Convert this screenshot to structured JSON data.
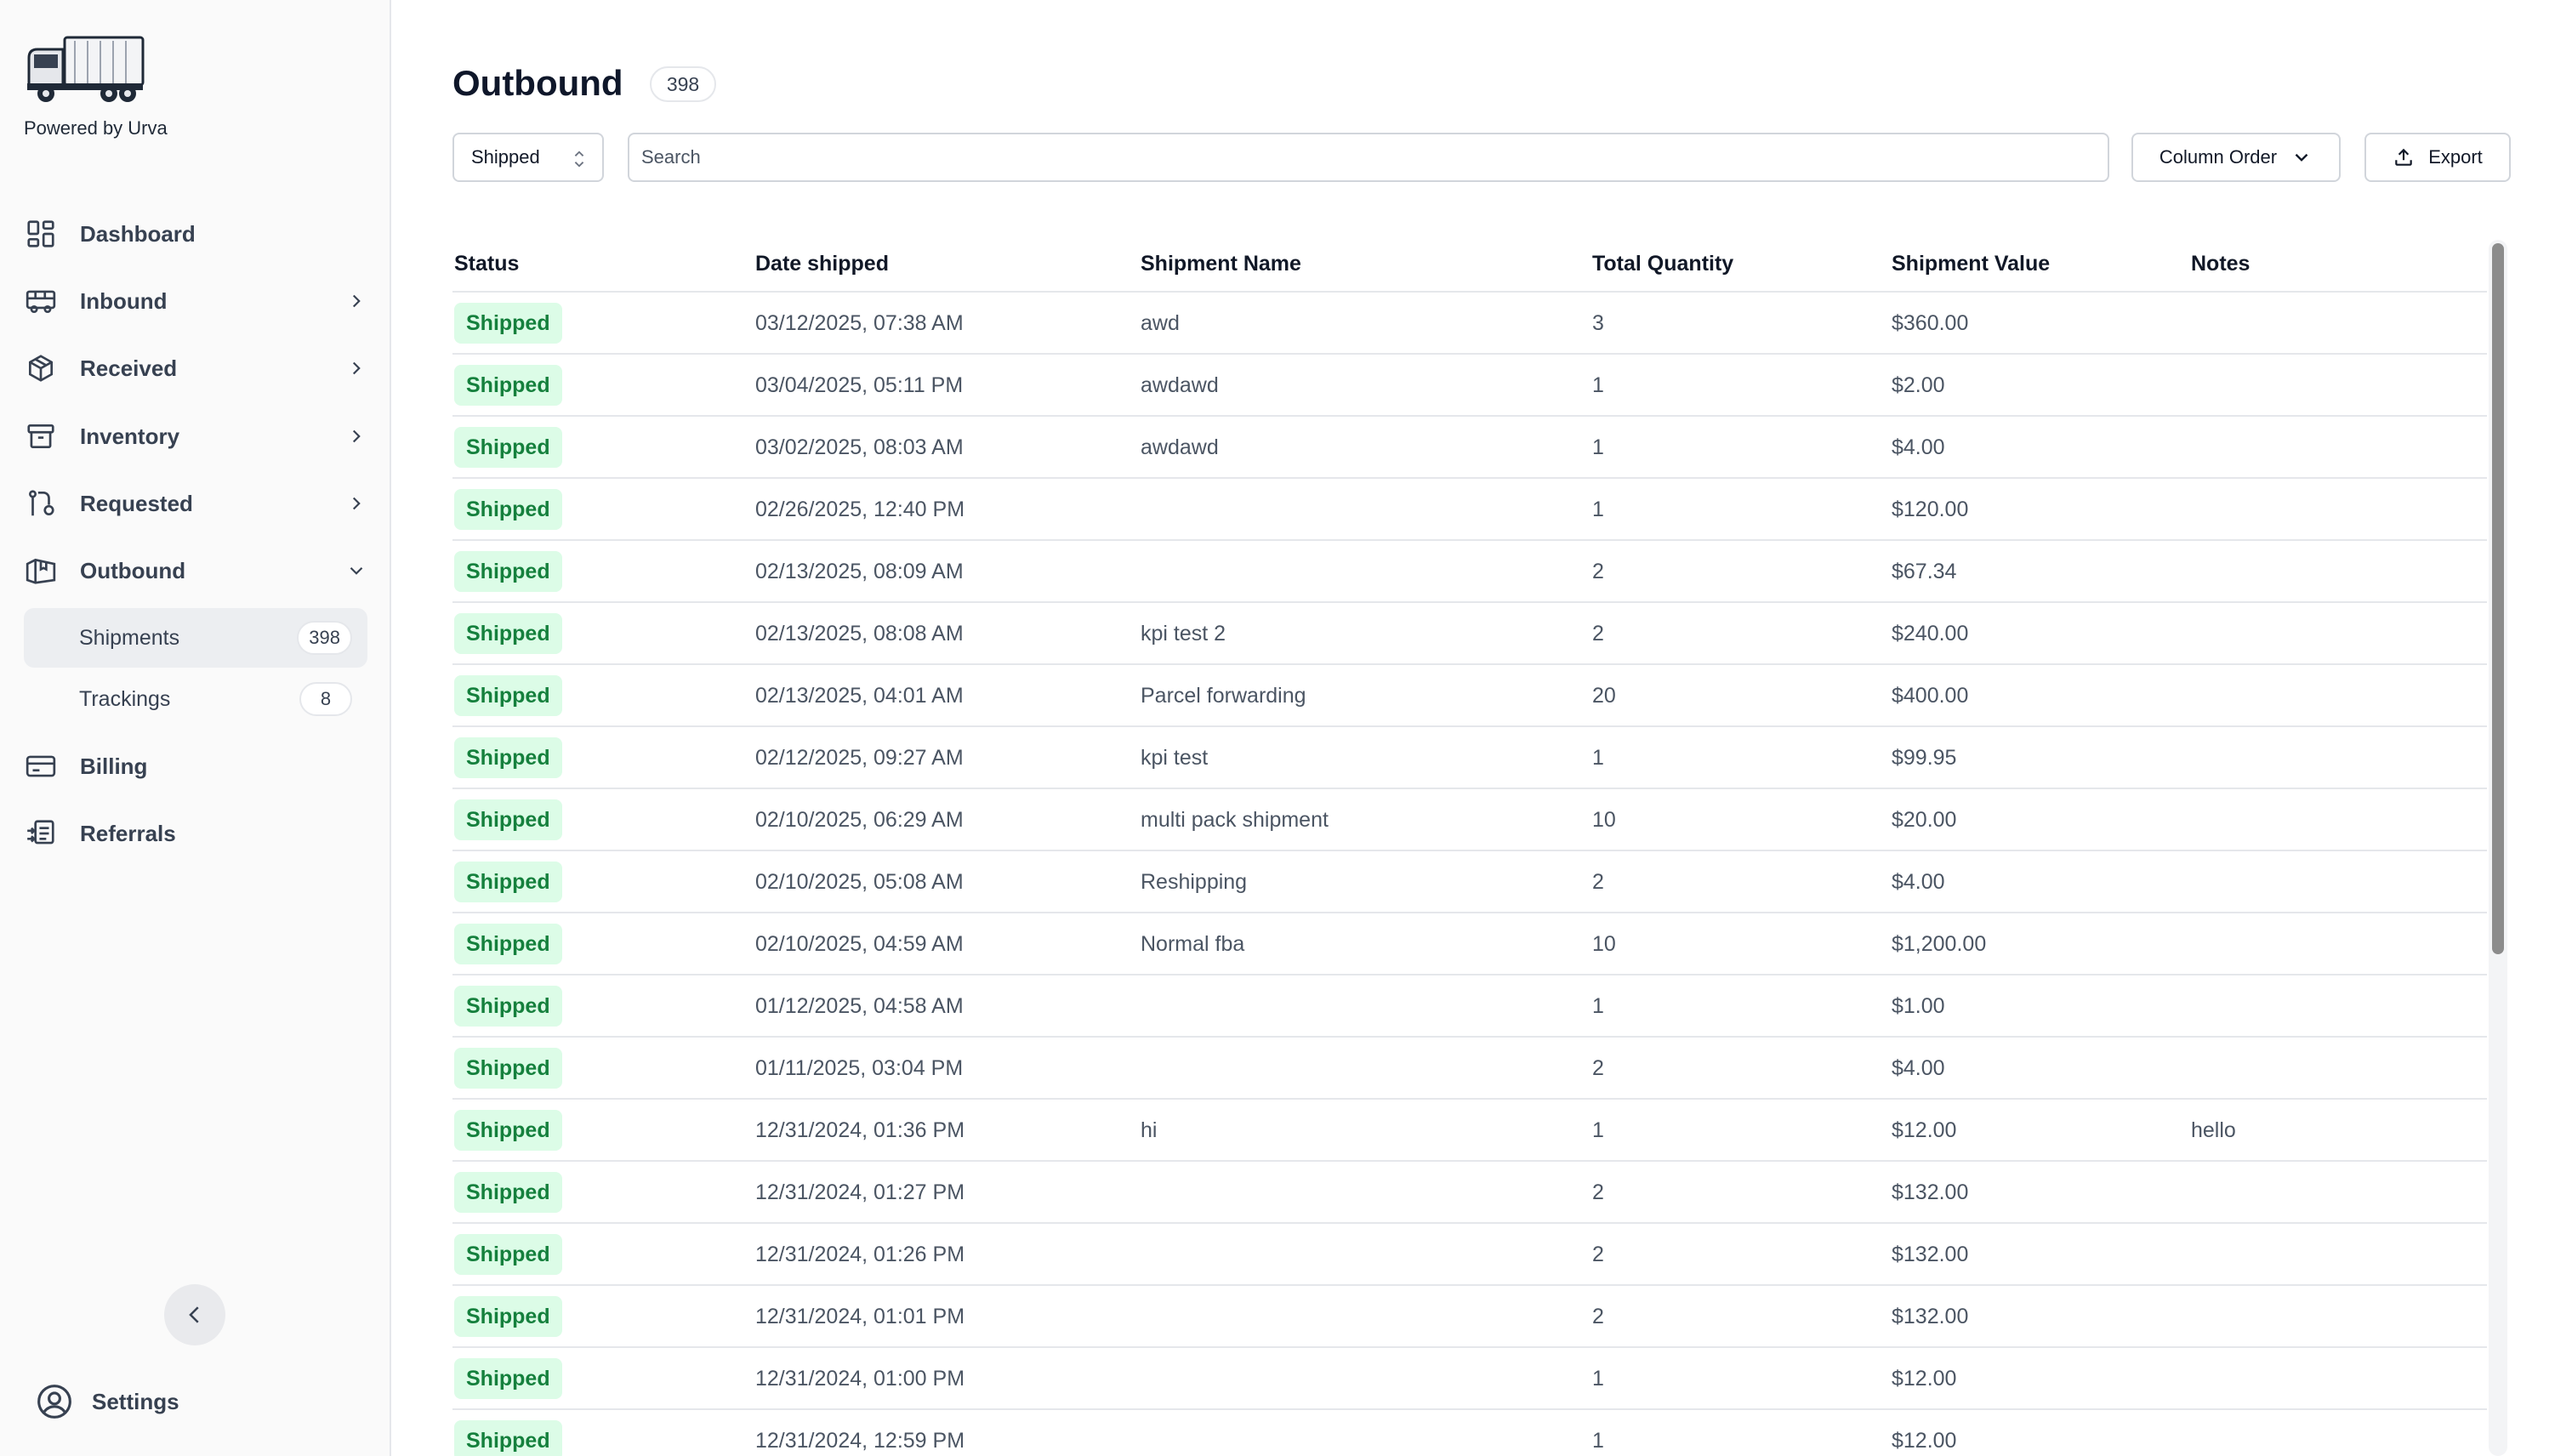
{
  "brand": {
    "powered_by": "Powered by Urva"
  },
  "sidebar": {
    "items": [
      {
        "label": "Dashboard",
        "icon": "dashboard-icon"
      },
      {
        "label": "Inbound",
        "icon": "truck-icon"
      },
      {
        "label": "Received",
        "icon": "package-icon"
      },
      {
        "label": "Inventory",
        "icon": "archive-icon"
      },
      {
        "label": "Requested",
        "icon": "route-icon"
      },
      {
        "label": "Outbound",
        "icon": "box-open-icon"
      }
    ],
    "outbound_sub": [
      {
        "label": "Shipments",
        "count": "398"
      },
      {
        "label": "Trackings",
        "count": "8"
      }
    ],
    "bottom_items": [
      {
        "label": "Billing",
        "icon": "credit-card-icon"
      },
      {
        "label": "Referrals",
        "icon": "referrals-icon"
      }
    ],
    "settings_label": "Settings"
  },
  "header": {
    "title": "Outbound",
    "count": "398"
  },
  "toolbar": {
    "status_filter": "Shipped",
    "search_placeholder": "Search",
    "column_order_label": "Column Order",
    "export_label": "Export"
  },
  "table": {
    "columns": [
      "Status",
      "Date shipped",
      "Shipment Name",
      "Total Quantity",
      "Shipment Value",
      "Notes"
    ],
    "rows": [
      {
        "status": "Shipped",
        "date": "03/12/2025, 07:38 AM",
        "name": "awd",
        "qty": "3",
        "value": "$360.00",
        "notes": ""
      },
      {
        "status": "Shipped",
        "date": "03/04/2025, 05:11 PM",
        "name": "awdawd",
        "qty": "1",
        "value": "$2.00",
        "notes": ""
      },
      {
        "status": "Shipped",
        "date": "03/02/2025, 08:03 AM",
        "name": "awdawd",
        "qty": "1",
        "value": "$4.00",
        "notes": ""
      },
      {
        "status": "Shipped",
        "date": "02/26/2025, 12:40 PM",
        "name": "",
        "qty": "1",
        "value": "$120.00",
        "notes": ""
      },
      {
        "status": "Shipped",
        "date": "02/13/2025, 08:09 AM",
        "name": "",
        "qty": "2",
        "value": "$67.34",
        "notes": ""
      },
      {
        "status": "Shipped",
        "date": "02/13/2025, 08:08 AM",
        "name": "kpi test 2",
        "qty": "2",
        "value": "$240.00",
        "notes": ""
      },
      {
        "status": "Shipped",
        "date": "02/13/2025, 04:01 AM",
        "name": "Parcel forwarding",
        "qty": "20",
        "value": "$400.00",
        "notes": ""
      },
      {
        "status": "Shipped",
        "date": "02/12/2025, 09:27 AM",
        "name": "kpi test",
        "qty": "1",
        "value": "$99.95",
        "notes": ""
      },
      {
        "status": "Shipped",
        "date": "02/10/2025, 06:29 AM",
        "name": "multi pack shipment",
        "qty": "10",
        "value": "$20.00",
        "notes": ""
      },
      {
        "status": "Shipped",
        "date": "02/10/2025, 05:08 AM",
        "name": "Reshipping",
        "qty": "2",
        "value": "$4.00",
        "notes": ""
      },
      {
        "status": "Shipped",
        "date": "02/10/2025, 04:59 AM",
        "name": "Normal fba",
        "qty": "10",
        "value": "$1,200.00",
        "notes": ""
      },
      {
        "status": "Shipped",
        "date": "01/12/2025, 04:58 AM",
        "name": "",
        "qty": "1",
        "value": "$1.00",
        "notes": ""
      },
      {
        "status": "Shipped",
        "date": "01/11/2025, 03:04 PM",
        "name": "",
        "qty": "2",
        "value": "$4.00",
        "notes": ""
      },
      {
        "status": "Shipped",
        "date": "12/31/2024, 01:36 PM",
        "name": "hi",
        "qty": "1",
        "value": "$12.00",
        "notes": "hello"
      },
      {
        "status": "Shipped",
        "date": "12/31/2024, 01:27 PM",
        "name": "",
        "qty": "2",
        "value": "$132.00",
        "notes": ""
      },
      {
        "status": "Shipped",
        "date": "12/31/2024, 01:26 PM",
        "name": "",
        "qty": "2",
        "value": "$132.00",
        "notes": ""
      },
      {
        "status": "Shipped",
        "date": "12/31/2024, 01:01 PM",
        "name": "",
        "qty": "2",
        "value": "$132.00",
        "notes": ""
      },
      {
        "status": "Shipped",
        "date": "12/31/2024, 01:00 PM",
        "name": "",
        "qty": "1",
        "value": "$12.00",
        "notes": ""
      },
      {
        "status": "Shipped",
        "date": "12/31/2024, 12:59 PM",
        "name": "",
        "qty": "1",
        "value": "$12.00",
        "notes": ""
      }
    ]
  },
  "colors": {
    "badge_bg": "#dcfce7",
    "badge_text": "#15803d",
    "sidebar_bg": "#fafafa",
    "active_sub_bg": "#eceef1"
  }
}
